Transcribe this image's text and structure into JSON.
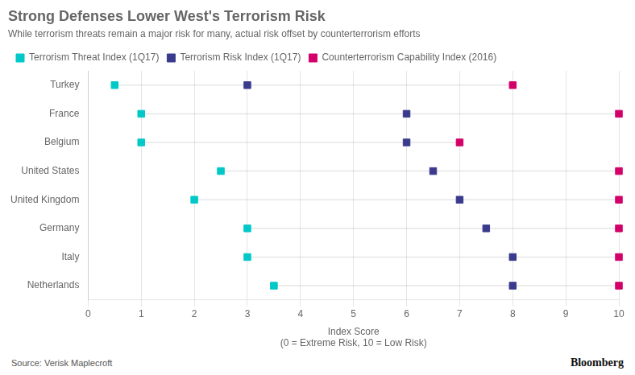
{
  "chart_data": {
    "type": "dot",
    "orientation": "horizontal",
    "title": "Strong Defenses Lower West's Terrorism Risk",
    "subtitle": "While terrorism threats remain a major risk for many, actual risk offset by counterterrorism efforts",
    "xlabel": "Index Score\n(0 = Extreme Risk, 10 = Low Risk)",
    "categories": [
      "Turkey",
      "France",
      "Belgium",
      "United States",
      "United Kingdom",
      "Germany",
      "Italy",
      "Netherlands"
    ],
    "series": [
      {
        "name": "Terrorism Threat Index (1Q17)",
        "color": "#00C8C8",
        "values": [
          0.5,
          1.0,
          1.0,
          2.5,
          2.0,
          3.0,
          3.0,
          3.5
        ]
      },
      {
        "name": "Terrorism Risk Index (1Q17)",
        "color": "#3B3B8E",
        "values": [
          3.0,
          6.0,
          6.0,
          6.5,
          7.0,
          7.5,
          8.0,
          8.0
        ]
      },
      {
        "name": "Counterterrorism Capability Index (2016)",
        "color": "#D4006A",
        "values": [
          8.0,
          10.0,
          7.0,
          10.0,
          10.0,
          10.0,
          10.0,
          10.0
        ]
      }
    ],
    "xlim": [
      0,
      10
    ],
    "xticks": [
      0,
      1,
      2,
      3,
      4,
      5,
      6,
      7,
      8,
      9,
      10
    ],
    "grid": true,
    "legend": "top",
    "marker": "square",
    "annotations": [
      "Source: Verisk Maplecroft",
      "Bloomberg"
    ]
  }
}
